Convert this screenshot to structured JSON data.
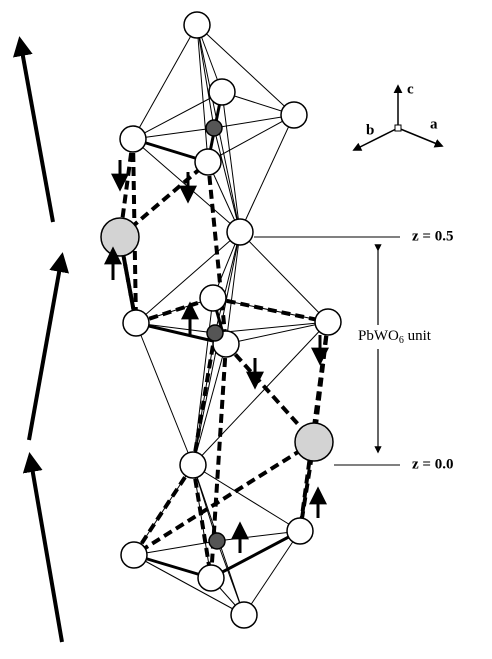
{
  "axes": {
    "c": "c",
    "b": "b",
    "a": "a"
  },
  "levels": {
    "upper": "z = 0.5",
    "lower": "z = 0.0"
  },
  "unit_label": {
    "main": "PbWO",
    "subscript": "6",
    "rest": " unit"
  }
}
